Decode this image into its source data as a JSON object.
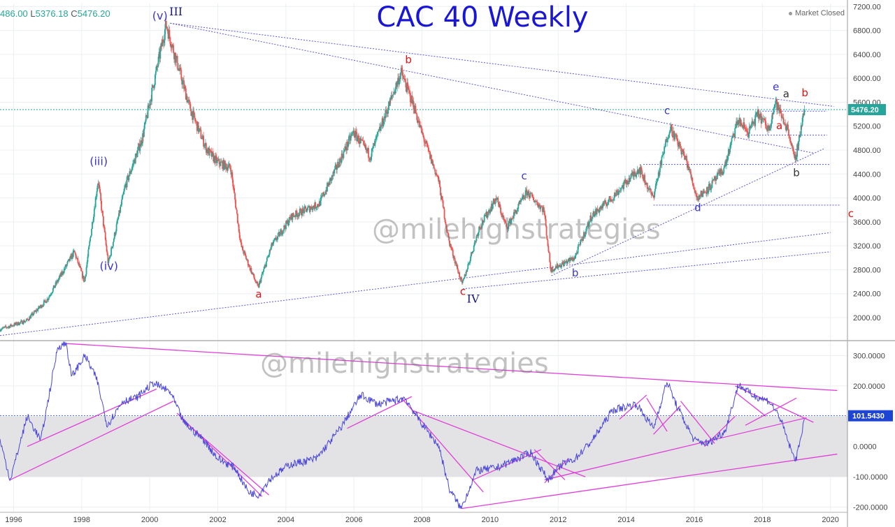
{
  "header": {
    "ohlc_open": "486.00",
    "ohlc_low_label": "L",
    "ohlc_low": "5376.18",
    "ohlc_close_label": "C",
    "ohlc_close": "5476.20",
    "title": "CAC 40 Weekly",
    "status": "Market Closed"
  },
  "watermark": "@milehighstrategies",
  "colors": {
    "up": "#26a69a",
    "down": "#ef5350",
    "wave_blue": "#3b36c8",
    "wave_red": "#e01010",
    "trend_blue": "#5b57d6",
    "trend_magenta": "#e040d8",
    "indicator": "#4a46d8",
    "last_price_bg": "#26a69a",
    "last_ind_bg": "#1e44d4"
  },
  "chart_data": [
    {
      "type": "candlestick",
      "title": "CAC 40 Weekly",
      "x_ticks": [
        "1996",
        "1998",
        "2000",
        "2002",
        "2004",
        "2006",
        "2008",
        "2010",
        "2012",
        "2014",
        "2016",
        "2018",
        "2020"
      ],
      "y_ticks": [
        "7200.00",
        "6800.00",
        "6400.00",
        "6000.00",
        "5600.00",
        "5200.00",
        "4800.00",
        "4400.00",
        "4000.00",
        "3600.00",
        "3200.00",
        "2800.00",
        "2400.00",
        "2000.00"
      ],
      "xlim": [
        1995.6,
        2020.5
      ],
      "ylim": [
        1650,
        7250
      ],
      "last_price": "5476.20",
      "pivots": [
        {
          "x": 1995.6,
          "y": 1800
        },
        {
          "x": 1996.4,
          "y": 1950
        },
        {
          "x": 1997.0,
          "y": 2300
        },
        {
          "x": 1997.8,
          "y": 3100
        },
        {
          "x": 1998.1,
          "y": 2600
        },
        {
          "x": 1998.5,
          "y": 4300
        },
        {
          "x": 1998.8,
          "y": 2900
        },
        {
          "x": 1999.3,
          "y": 4200
        },
        {
          "x": 1999.8,
          "y": 5000
        },
        {
          "x": 2000.5,
          "y": 6900
        },
        {
          "x": 2001.2,
          "y": 5500
        },
        {
          "x": 2001.7,
          "y": 4800
        },
        {
          "x": 2002.0,
          "y": 4600
        },
        {
          "x": 2002.4,
          "y": 4500
        },
        {
          "x": 2002.7,
          "y": 3200
        },
        {
          "x": 2003.2,
          "y": 2500
        },
        {
          "x": 2003.6,
          "y": 3200
        },
        {
          "x": 2004.2,
          "y": 3700
        },
        {
          "x": 2005.0,
          "y": 3900
        },
        {
          "x": 2006.0,
          "y": 5100
        },
        {
          "x": 2006.5,
          "y": 4700
        },
        {
          "x": 2007.4,
          "y": 6100
        },
        {
          "x": 2007.8,
          "y": 5500
        },
        {
          "x": 2008.0,
          "y": 5100
        },
        {
          "x": 2008.5,
          "y": 4300
        },
        {
          "x": 2008.8,
          "y": 3300
        },
        {
          "x": 2009.2,
          "y": 2550
        },
        {
          "x": 2009.7,
          "y": 3500
        },
        {
          "x": 2010.2,
          "y": 4000
        },
        {
          "x": 2010.5,
          "y": 3500
        },
        {
          "x": 2011.1,
          "y": 4100
        },
        {
          "x": 2011.6,
          "y": 3800
        },
        {
          "x": 2011.8,
          "y": 2800
        },
        {
          "x": 2012.5,
          "y": 3000
        },
        {
          "x": 2013.0,
          "y": 3700
        },
        {
          "x": 2013.6,
          "y": 4000
        },
        {
          "x": 2014.4,
          "y": 4500
        },
        {
          "x": 2014.8,
          "y": 4000
        },
        {
          "x": 2015.3,
          "y": 5200
        },
        {
          "x": 2015.8,
          "y": 4600
        },
        {
          "x": 2016.1,
          "y": 4000
        },
        {
          "x": 2016.5,
          "y": 4200
        },
        {
          "x": 2016.9,
          "y": 4500
        },
        {
          "x": 2017.3,
          "y": 5300
        },
        {
          "x": 2017.6,
          "y": 5100
        },
        {
          "x": 2017.9,
          "y": 5400
        },
        {
          "x": 2018.2,
          "y": 5150
        },
        {
          "x": 2018.4,
          "y": 5600
        },
        {
          "x": 2018.8,
          "y": 5100
        },
        {
          "x": 2018.97,
          "y": 4600
        },
        {
          "x": 2019.25,
          "y": 5480
        }
      ],
      "trendlines": [
        {
          "from": [
            2000.6,
            6920
          ],
          "to": [
            2020.1,
            5530
          ]
        },
        {
          "from": [
            2000.6,
            6920
          ],
          "to": [
            2019.5,
            4750
          ]
        },
        {
          "from": [
            1995.6,
            1700
          ],
          "to": [
            2020.0,
            3420
          ]
        },
        {
          "from": [
            2009.2,
            2480
          ],
          "to": [
            2020.0,
            3100
          ]
        },
        {
          "from": [
            2011.8,
            2700
          ],
          "to": [
            2019.8,
            4820
          ]
        }
      ],
      "hlines": [
        {
          "y": 5476,
          "x1": 1995.6,
          "x2": 2020.5,
          "style": "last"
        },
        {
          "y": 5450,
          "x1": 2018.0,
          "x2": 2019.9
        },
        {
          "y": 5050,
          "x1": 2017.5,
          "x2": 2019.9
        },
        {
          "y": 4560,
          "x1": 2014.5,
          "x2": 2020.0
        },
        {
          "y": 3880,
          "x1": 2014.8,
          "x2": 2020.3
        }
      ],
      "wave_labels": [
        {
          "text": "(v)",
          "x": 2000.3,
          "y": 6980,
          "color": "blue"
        },
        {
          "text": "III",
          "x": 2000.77,
          "y": 7050,
          "color": "navy"
        },
        {
          "text": "(iii)",
          "x": 1998.5,
          "y": 4550,
          "color": "blue"
        },
        {
          "text": "(iv)",
          "x": 1998.8,
          "y": 2800,
          "color": "blue"
        },
        {
          "text": "a",
          "x": 2003.2,
          "y": 2330,
          "color": "red"
        },
        {
          "text": "b",
          "x": 2007.6,
          "y": 6250,
          "color": "red"
        },
        {
          "text": "c",
          "x": 2009.2,
          "y": 2380,
          "color": "red"
        },
        {
          "text": "IV",
          "x": 2009.5,
          "y": 2250,
          "color": "navy"
        },
        {
          "text": "c",
          "x": 2011.0,
          "y": 4310,
          "color": "blue"
        },
        {
          "text": "b",
          "x": 2012.5,
          "y": 2690,
          "color": "blue"
        },
        {
          "text": "c",
          "x": 2015.2,
          "y": 5400,
          "color": "blue"
        },
        {
          "text": "d",
          "x": 2016.1,
          "y": 3780,
          "color": "blue"
        },
        {
          "text": "e",
          "x": 2018.4,
          "y": 5800,
          "color": "blue"
        },
        {
          "text": "a",
          "x": 2018.7,
          "y": 5680,
          "color": "dark"
        },
        {
          "text": "b",
          "x": 2019.25,
          "y": 5700,
          "color": "red"
        },
        {
          "text": "a",
          "x": 2018.5,
          "y": 5150,
          "color": "red"
        },
        {
          "text": "b",
          "x": 2019.0,
          "y": 4360,
          "color": "dark"
        },
        {
          "text": "c",
          "x": 2020.6,
          "y": 3680,
          "color": "red"
        }
      ]
    },
    {
      "type": "line",
      "series": [
        {
          "name": "",
          "values": []
        }
      ],
      "y_ticks": [
        "300.0000",
        "200.0000",
        "0.0000",
        "-100.0000",
        "-200.0000"
      ],
      "ylim": [
        -215,
        345
      ],
      "last_value": "101.5430",
      "band": [
        -100,
        100
      ],
      "pivots": [
        {
          "x": 1995.6,
          "y": 20
        },
        {
          "x": 1995.9,
          "y": -110
        },
        {
          "x": 1996.4,
          "y": 100
        },
        {
          "x": 1996.8,
          "y": 20
        },
        {
          "x": 1997.3,
          "y": 330
        },
        {
          "x": 1997.55,
          "y": 340
        },
        {
          "x": 1997.7,
          "y": 230
        },
        {
          "x": 1998.1,
          "y": 300
        },
        {
          "x": 1998.45,
          "y": 220
        },
        {
          "x": 1998.75,
          "y": 70
        },
        {
          "x": 1999.2,
          "y": 150
        },
        {
          "x": 1999.6,
          "y": 160
        },
        {
          "x": 2000.1,
          "y": 210
        },
        {
          "x": 2000.6,
          "y": 180
        },
        {
          "x": 2001.0,
          "y": 80
        },
        {
          "x": 2001.6,
          "y": 20
        },
        {
          "x": 2002.0,
          "y": -40
        },
        {
          "x": 2002.5,
          "y": -70
        },
        {
          "x": 2002.9,
          "y": -150
        },
        {
          "x": 2003.2,
          "y": -160
        },
        {
          "x": 2003.5,
          "y": -110
        },
        {
          "x": 2004.1,
          "y": -60
        },
        {
          "x": 2004.9,
          "y": -40
        },
        {
          "x": 2005.6,
          "y": 60
        },
        {
          "x": 2006.2,
          "y": 170
        },
        {
          "x": 2006.7,
          "y": 140
        },
        {
          "x": 2007.5,
          "y": 160
        },
        {
          "x": 2007.9,
          "y": 90
        },
        {
          "x": 2008.5,
          "y": 0
        },
        {
          "x": 2008.8,
          "y": -140
        },
        {
          "x": 2009.15,
          "y": -205
        },
        {
          "x": 2009.6,
          "y": -80
        },
        {
          "x": 2010.2,
          "y": -70
        },
        {
          "x": 2011.2,
          "y": -20
        },
        {
          "x": 2011.7,
          "y": -110
        },
        {
          "x": 2012.1,
          "y": -60
        },
        {
          "x": 2012.5,
          "y": -40
        },
        {
          "x": 2013.0,
          "y": 20
        },
        {
          "x": 2013.6,
          "y": 120
        },
        {
          "x": 2014.3,
          "y": 140
        },
        {
          "x": 2014.8,
          "y": 60
        },
        {
          "x": 2015.2,
          "y": 215
        },
        {
          "x": 2015.5,
          "y": 130
        },
        {
          "x": 2016.0,
          "y": 20
        },
        {
          "x": 2016.4,
          "y": 10
        },
        {
          "x": 2016.9,
          "y": 50
        },
        {
          "x": 2017.3,
          "y": 205
        },
        {
          "x": 2017.7,
          "y": 170
        },
        {
          "x": 2018.2,
          "y": 150
        },
        {
          "x": 2018.5,
          "y": 100
        },
        {
          "x": 2018.9,
          "y": -30
        },
        {
          "x": 2019.0,
          "y": -40
        },
        {
          "x": 2019.25,
          "y": 102
        }
      ],
      "trendlines": [
        {
          "from": [
            1997.55,
            340
          ],
          "to": [
            2020.2,
            185
          ]
        },
        {
          "from": [
            1995.9,
            -110
          ],
          "to": [
            2000.7,
            150
          ]
        },
        {
          "from": [
            1996.4,
            0
          ],
          "to": [
            2000.2,
            190
          ]
        },
        {
          "from": [
            2000.8,
            110
          ],
          "to": [
            2003.3,
            -165
          ]
        },
        {
          "from": [
            2000.9,
            95
          ],
          "to": [
            2003.5,
            -160
          ]
        },
        {
          "from": [
            2005.8,
            60
          ],
          "to": [
            2007.7,
            165
          ]
        },
        {
          "from": [
            2007.4,
            160
          ],
          "to": [
            2009.8,
            -150
          ]
        },
        {
          "from": [
            2007.7,
            120
          ],
          "to": [
            2012.8,
            -100
          ]
        },
        {
          "from": [
            2009.15,
            -205
          ],
          "to": [
            2020.2,
            -25
          ]
        },
        {
          "from": [
            2009.5,
            -110
          ],
          "to": [
            2011.5,
            -10
          ]
        },
        {
          "from": [
            2011.3,
            -10
          ],
          "to": [
            2012.2,
            -110
          ]
        },
        {
          "from": [
            2011.6,
            -120
          ],
          "to": [
            2012.3,
            -40
          ]
        },
        {
          "from": [
            2011.6,
            -110
          ],
          "to": [
            2019.3,
            95
          ]
        },
        {
          "from": [
            2013.8,
            90
          ],
          "to": [
            2014.6,
            170
          ]
        },
        {
          "from": [
            2014.6,
            160
          ],
          "to": [
            2015.2,
            50
          ]
        },
        {
          "from": [
            2014.8,
            40
          ],
          "to": [
            2015.6,
            135
          ]
        },
        {
          "from": [
            2015.6,
            150
          ],
          "to": [
            2016.6,
            10
          ]
        },
        {
          "from": [
            2016.3,
            0
          ],
          "to": [
            2017.2,
            100
          ]
        },
        {
          "from": [
            2017.2,
            180
          ],
          "to": [
            2018.1,
            100
          ]
        },
        {
          "from": [
            2017.2,
            200
          ],
          "to": [
            2019.5,
            80
          ]
        },
        {
          "from": [
            2017.5,
            70
          ],
          "to": [
            2019.0,
            160
          ]
        }
      ]
    }
  ]
}
